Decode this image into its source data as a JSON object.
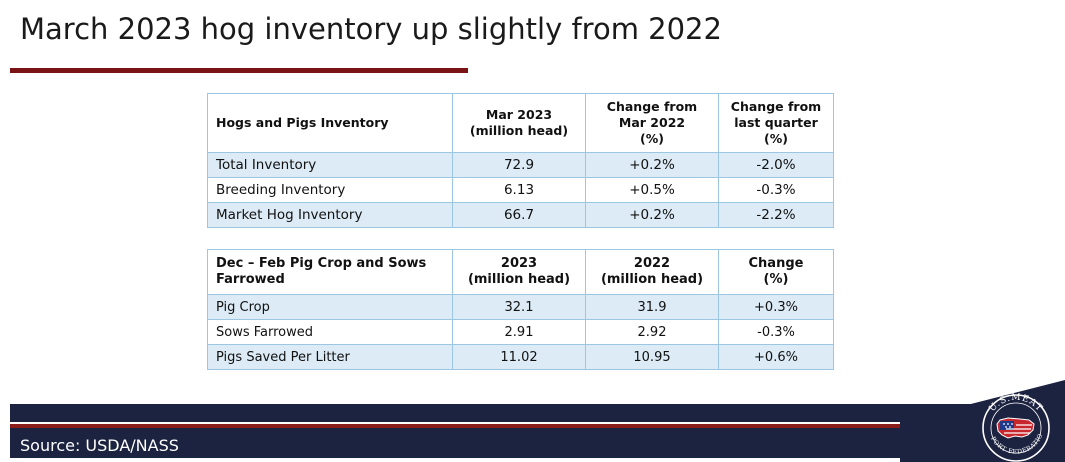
{
  "title": "March 2023 hog inventory up slightly from 2022",
  "table1": {
    "headers": [
      "Hogs and Pigs Inventory",
      "Mar 2023\n(million head)",
      "Change from\nMar 2022\n(%)",
      "Change from\nlast quarter\n(%)"
    ],
    "rows": [
      [
        "Total Inventory",
        "72.9",
        "+0.2%",
        "-2.0%"
      ],
      [
        "Breeding Inventory",
        "6.13",
        "+0.5%",
        "-0.3%"
      ],
      [
        "Market Hog Inventory",
        "66.7",
        "+0.2%",
        "-2.2%"
      ]
    ]
  },
  "table2": {
    "headers": [
      "Dec – Feb Pig Crop and Sows\nFarrowed",
      "2023\n(million head)",
      "2022\n(million head)",
      "Change\n(%)"
    ],
    "rows": [
      [
        "Pig Crop",
        "32.1",
        "31.9",
        "+0.3%"
      ],
      [
        "Sows Farrowed",
        "2.91",
        "2.92",
        "-0.3%"
      ],
      [
        "Pigs Saved Per Litter",
        "11.02",
        "10.95",
        "+0.6%"
      ]
    ]
  },
  "footer": {
    "source": "Source: USDA/NASS"
  },
  "logo": {
    "top_text": "U.S.MEAT",
    "bottom_text": "EXPORT FEDERATION"
  },
  "colors": {
    "title_rule": "#7a1414",
    "navy": "#1c2340",
    "red": "#8a1c1c",
    "row_shade": "#dcebf6",
    "border": "#9cc7e2"
  }
}
